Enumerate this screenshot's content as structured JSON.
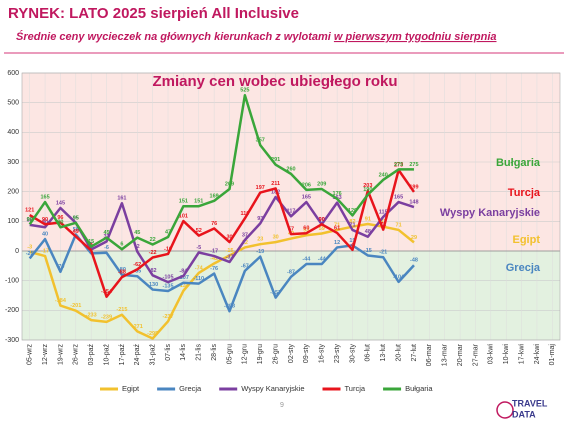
{
  "header": {
    "title": "RYNEK: LATO 2025 sierpień All Inclusive",
    "subtitle": "Średnie ceny wycieczek na głównych kierunkach z wylotami ",
    "subtitle_underlined": "w pierwszym tygodniu sierpnia"
  },
  "chart_data": {
    "type": "line",
    "title": "Zmiany cen wobec ubiegłego roku",
    "categories": [
      "05-wrz",
      "12-wrz",
      "19-wrz",
      "26-wrz",
      "03-paź",
      "10-paź",
      "17-paź",
      "24-paź",
      "31-paź",
      "07-lis",
      "14-lis",
      "21-lis",
      "28-lis",
      "05-gru",
      "12-gru",
      "19-gru",
      "26-gru",
      "02-sty",
      "09-sty",
      "16-sty",
      "23-sty",
      "30-sty",
      "06-lut",
      "13-lut",
      "20-lut",
      "27-lut",
      "06-mar",
      "13-mar",
      "20-mar",
      "27-mar",
      "03-kwi",
      "10-kwi",
      "17-kwi",
      "24-kwi",
      "01-maj"
    ],
    "ylim": [
      -300,
      600
    ],
    "yticks": [
      -300,
      -200,
      -100,
      0,
      100,
      200,
      300,
      400,
      500,
      600
    ],
    "series": [
      {
        "name": "Egipt",
        "color": "#f2c12e",
        "values": [
          -3,
          -17,
          -184,
          -201,
          -233,
          -239,
          -215,
          -271,
          -295,
          -237,
          -134,
          -74,
          -42,
          -15,
          12,
          23,
          30,
          42,
          53,
          59,
          71,
          82,
          91,
          82,
          71,
          29,
          null,
          null,
          null,
          null,
          null,
          null,
          null,
          null,
          null
        ]
      },
      {
        "name": "Grecja",
        "color": "#4a86c0",
        "values": [
          -25,
          40,
          -70,
          56,
          -8,
          -6,
          -80,
          -85,
          -130,
          -135,
          -107,
          -110,
          -76,
          -203,
          -67,
          -19,
          -157,
          -87,
          -44,
          -44,
          12,
          19,
          -15,
          -21,
          -104,
          -48,
          null,
          null,
          null,
          null,
          null,
          null,
          null,
          null,
          null
        ]
      },
      {
        "name": "Wyspy Kanaryjskie",
        "color": "#7b3fa0",
        "values": [
          88,
          80,
          145,
          95,
          5,
          32,
          161,
          -2,
          -82,
          -105,
          -84,
          -5,
          -17,
          -37,
          37,
          93,
          182,
          117,
          165,
          90,
          163,
          71,
          48,
          115,
          165,
          148,
          null,
          null,
          null,
          null,
          null,
          null,
          null,
          null,
          null
        ]
      },
      {
        "name": "Turcja",
        "color": "#e8141c",
        "values": [
          121,
          90,
          96,
          49,
          2,
          -154,
          -88,
          -62,
          -22,
          -10,
          101,
          52,
          76,
          30,
          110,
          197,
          211,
          57,
          60,
          90,
          61,
          4,
          203,
          72,
          273,
          199,
          null,
          null,
          null,
          null,
          null,
          null,
          null,
          null,
          null
        ]
      },
      {
        "name": "Bułgaria",
        "color": "#3aa63a",
        "values": [
          90,
          165,
          80,
          95,
          15,
          45,
          6,
          45,
          22,
          47,
          151,
          151,
          169,
          209,
          525,
          357,
          291,
          260,
          206,
          209,
          176,
          120,
          190,
          240,
          275,
          275,
          null,
          null,
          null,
          null,
          null,
          null,
          null,
          null,
          null
        ]
      }
    ]
  },
  "footer": {
    "page": "9",
    "logo_top": "TRAVEL",
    "logo_bottom": "DATA"
  }
}
